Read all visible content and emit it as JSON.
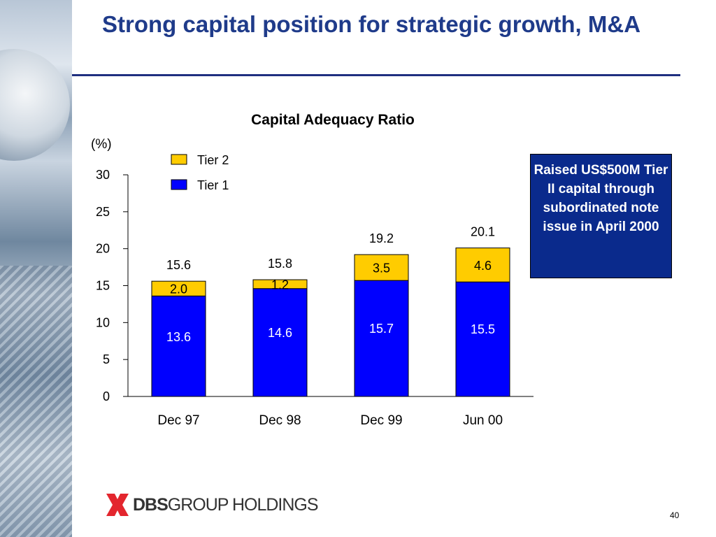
{
  "slide": {
    "title": "Strong capital position for strategic growth, M&A",
    "callout": "Raised US$500M Tier II capital through subordinated note issue in April 2000",
    "logo": {
      "bold": "DBS",
      "rest": "GROUP HOLDINGS"
    },
    "page_number": "40"
  },
  "colors": {
    "tier1": "#0000ff",
    "tier2": "#ffcc00",
    "title": "#1f3b8a",
    "callout_bg": "#0a2a8c"
  },
  "chart_data": {
    "type": "bar",
    "stacked": true,
    "title": "Capital Adequacy Ratio",
    "ylabel": "(%)",
    "categories": [
      "Dec 97",
      "Dec 98",
      "Dec 99",
      "Jun 00"
    ],
    "series": [
      {
        "name": "Tier 1",
        "values": [
          13.6,
          14.6,
          15.7,
          15.5
        ],
        "labels": [
          "13.6",
          "14.6",
          "15.7",
          "15.5"
        ]
      },
      {
        "name": "Tier 2",
        "values": [
          2.0,
          1.2,
          3.5,
          4.6
        ],
        "labels": [
          "2.0",
          "1.2",
          "3.5",
          "4.6"
        ]
      }
    ],
    "totals": [
      "15.6",
      "15.8",
      "19.2",
      "20.1"
    ],
    "ylim": [
      0,
      30
    ],
    "yticks": [
      "0",
      "5",
      "10",
      "15",
      "20",
      "25",
      "30"
    ],
    "legend": {
      "placement": "top-left",
      "entries": [
        "Tier 2",
        "Tier 1"
      ]
    },
    "grid": false
  }
}
